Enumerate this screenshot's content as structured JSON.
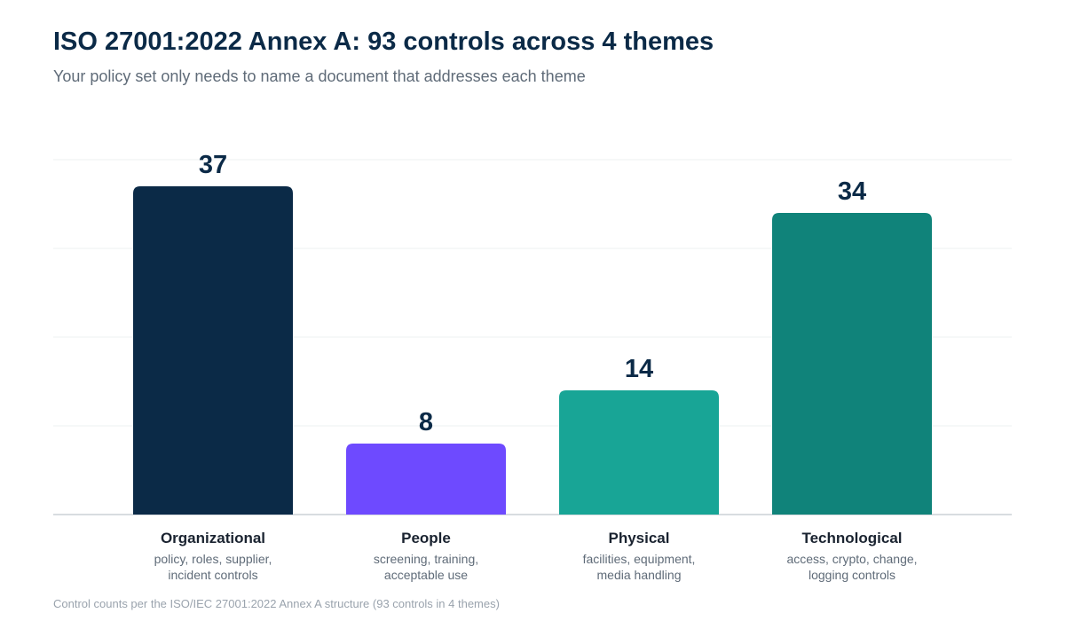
{
  "title": "ISO 27001:2022 Annex A: 93 controls across 4 themes",
  "subtitle": "Your policy set only needs to name a document that addresses each theme",
  "footnote": "Control counts per the ISO/IEC 27001:2022 Annex A structure (93 controls in 4 themes)",
  "chart_data": {
    "type": "bar",
    "categories": [
      "Organizational",
      "People",
      "Physical",
      "Technological"
    ],
    "descriptions": [
      [
        "policy, roles, supplier,",
        "incident controls"
      ],
      [
        "screening, training,",
        "acceptable use"
      ],
      [
        "facilities, equipment,",
        "media handling"
      ],
      [
        "access, crypto, change,",
        "logging controls"
      ]
    ],
    "values": [
      37,
      8,
      14,
      34
    ],
    "colors": [
      "#0b2a47",
      "#6e4aff",
      "#18a596",
      "#10837a"
    ],
    "ylim": [
      0,
      40
    ],
    "grid": true,
    "data_labels": true
  }
}
